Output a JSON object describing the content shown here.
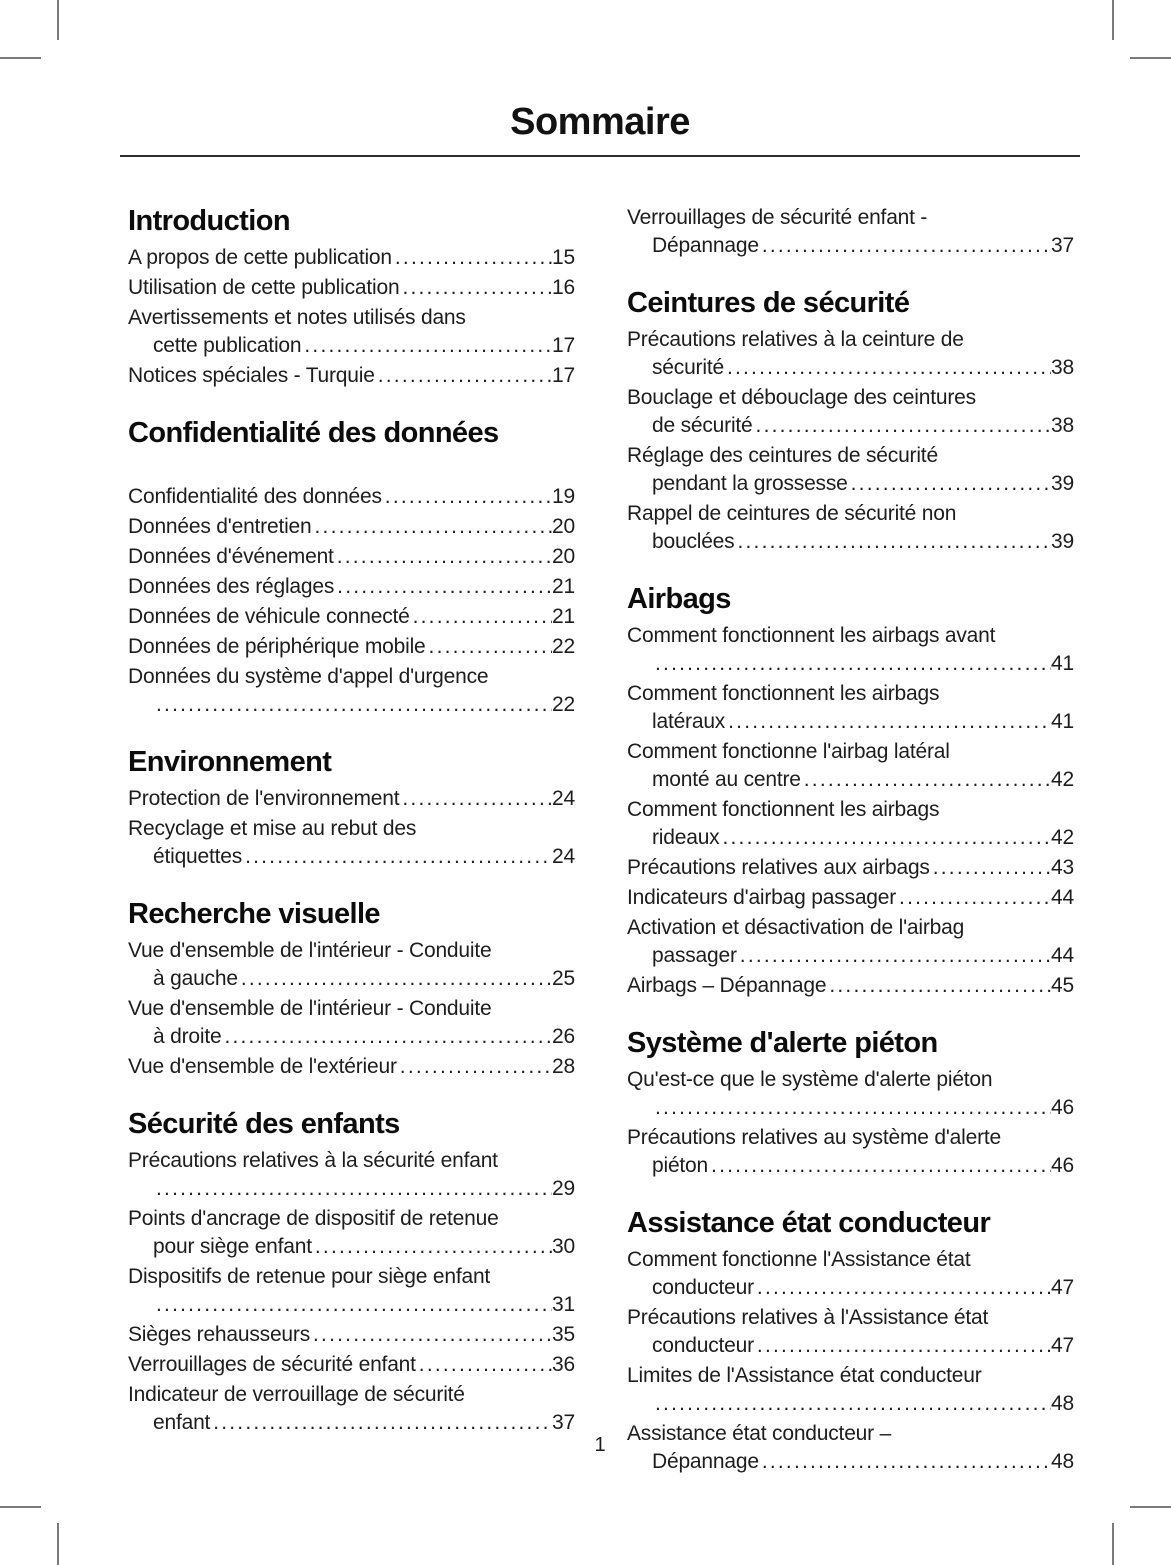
{
  "title": "Sommaire",
  "footer": {
    "page_number": "1"
  },
  "toc": {
    "columns": [
      {
        "sections": [
          {
            "heading": "Introduction",
            "extra_gap": false,
            "entries": [
              {
                "lines": [
                  "A propos de cette publication"
                ],
                "page": "15"
              },
              {
                "lines": [
                  "Utilisation de cette publication"
                ],
                "page": "16"
              },
              {
                "lines": [
                  "Avertissements et notes utilisés dans",
                  "cette publication"
                ],
                "page": "17"
              },
              {
                "lines": [
                  "Notices spéciales - Turquie"
                ],
                "page": "17"
              }
            ]
          },
          {
            "heading": "Confidentialité des données",
            "extra_gap": true,
            "entries": [
              {
                "lines": [
                  "Confidentialité des données"
                ],
                "page": "19"
              },
              {
                "lines": [
                  "Données d'entretien"
                ],
                "page": "20"
              },
              {
                "lines": [
                  "Données d'événement"
                ],
                "page": "20"
              },
              {
                "lines": [
                  "Données des réglages"
                ],
                "page": "21"
              },
              {
                "lines": [
                  "Données de véhicule connecté"
                ],
                "page": "21"
              },
              {
                "lines": [
                  "Données de périphérique mobile"
                ],
                "page": "22"
              },
              {
                "lines": [
                  "Données du système d'appel d'urgence",
                  ""
                ],
                "page": "22"
              }
            ]
          },
          {
            "heading": "Environnement",
            "extra_gap": false,
            "entries": [
              {
                "lines": [
                  "Protection de l'environnement"
                ],
                "page": "24"
              },
              {
                "lines": [
                  "Recyclage et mise au rebut des",
                  "étiquettes"
                ],
                "page": "24"
              }
            ]
          },
          {
            "heading": "Recherche visuelle",
            "extra_gap": false,
            "entries": [
              {
                "lines": [
                  "Vue d'ensemble de l'intérieur - Conduite",
                  "à gauche"
                ],
                "page": "25"
              },
              {
                "lines": [
                  "Vue d'ensemble de l'intérieur - Conduite",
                  "à droite"
                ],
                "page": "26"
              },
              {
                "lines": [
                  "Vue d'ensemble de l'extérieur"
                ],
                "page": "28"
              }
            ]
          },
          {
            "heading": "Sécurité des enfants",
            "extra_gap": false,
            "entries": [
              {
                "lines": [
                  "Précautions relatives à la sécurité enfant",
                  ""
                ],
                "page": "29"
              },
              {
                "lines": [
                  "Points d'ancrage de dispositif de retenue",
                  "pour siège enfant"
                ],
                "page": "30"
              },
              {
                "lines": [
                  "Dispositifs de retenue pour siège enfant",
                  ""
                ],
                "page": "31"
              },
              {
                "lines": [
                  "Sièges rehausseurs"
                ],
                "page": "35"
              },
              {
                "lines": [
                  "Verrouillages de sécurité enfant"
                ],
                "page": "36"
              },
              {
                "lines": [
                  "Indicateur de verrouillage de sécurité",
                  "enfant"
                ],
                "page": "37"
              }
            ]
          }
        ]
      },
      {
        "sections": [
          {
            "heading": "",
            "extra_gap": false,
            "entries": [
              {
                "lines": [
                  "Verrouillages de sécurité enfant -",
                  "Dépannage"
                ],
                "page": "37"
              }
            ]
          },
          {
            "heading": "Ceintures de sécurité",
            "extra_gap": false,
            "entries": [
              {
                "lines": [
                  "Précautions relatives à la ceinture de",
                  "sécurité"
                ],
                "page": "38"
              },
              {
                "lines": [
                  "Bouclage et débouclage des ceintures",
                  "de sécurité"
                ],
                "page": "38"
              },
              {
                "lines": [
                  "Réglage des ceintures de sécurité",
                  "pendant la grossesse"
                ],
                "page": "39"
              },
              {
                "lines": [
                  "Rappel de ceintures de sécurité non",
                  "bouclées"
                ],
                "page": "39"
              }
            ]
          },
          {
            "heading": "Airbags",
            "extra_gap": false,
            "entries": [
              {
                "lines": [
                  "Comment fonctionnent les airbags avant",
                  ""
                ],
                "page": "41"
              },
              {
                "lines": [
                  "Comment fonctionnent les airbags",
                  "latéraux"
                ],
                "page": "41"
              },
              {
                "lines": [
                  "Comment fonctionne l'airbag latéral",
                  "monté au centre"
                ],
                "page": "42"
              },
              {
                "lines": [
                  "Comment fonctionnent les airbags",
                  "rideaux"
                ],
                "page": "42"
              },
              {
                "lines": [
                  "Précautions relatives aux airbags"
                ],
                "page": "43"
              },
              {
                "lines": [
                  "Indicateurs d'airbag passager"
                ],
                "page": "44"
              },
              {
                "lines": [
                  "Activation et désactivation de l'airbag",
                  "passager"
                ],
                "page": "44"
              },
              {
                "lines": [
                  "Airbags – Dépannage"
                ],
                "page": "45"
              }
            ]
          },
          {
            "heading": "Système d'alerte piéton",
            "extra_gap": false,
            "entries": [
              {
                "lines": [
                  "Qu'est-ce que le système d'alerte piéton",
                  ""
                ],
                "page": "46"
              },
              {
                "lines": [
                  "Précautions relatives au système d'alerte",
                  "piéton"
                ],
                "page": "46"
              }
            ]
          },
          {
            "heading": "Assistance état conducteur",
            "extra_gap": false,
            "entries": [
              {
                "lines": [
                  "Comment fonctionne l'Assistance état",
                  "conducteur"
                ],
                "page": "47"
              },
              {
                "lines": [
                  "Précautions relatives à l'Assistance état",
                  "conducteur"
                ],
                "page": "47"
              },
              {
                "lines": [
                  "Limites de l'Assistance état conducteur",
                  ""
                ],
                "page": "48"
              },
              {
                "lines": [
                  "Assistance état conducteur –",
                  "Dépannage"
                ],
                "page": "48"
              }
            ]
          }
        ]
      }
    ]
  }
}
